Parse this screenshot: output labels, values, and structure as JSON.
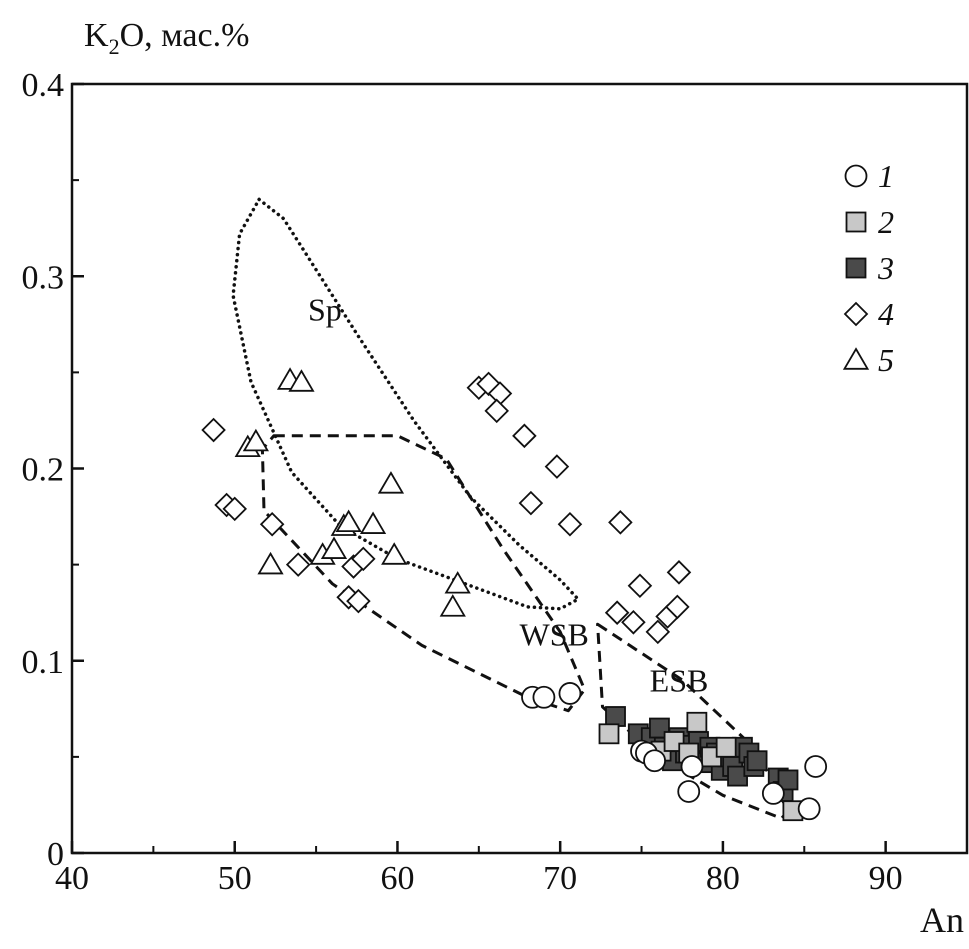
{
  "chart_data": {
    "type": "scatter",
    "title": "",
    "xlabel": "An",
    "ylabel_main": "K",
    "ylabel_sub": "2",
    "ylabel_rest": "O, мас.%",
    "xlim": [
      40,
      95
    ],
    "ylim": [
      0,
      0.4
    ],
    "x_ticks": [
      40,
      50,
      60,
      70,
      80,
      90
    ],
    "y_ticks": [
      0,
      0.1,
      0.2,
      0.3,
      0.4
    ],
    "y_tick_labels": [
      "0",
      "0.1",
      "0.2",
      "0.3",
      "0.4"
    ],
    "grid": false,
    "legend_position": "top-right",
    "series": [
      {
        "name": "1",
        "marker": "circle",
        "fill": "#ffffff",
        "points": [
          [
            68.3,
            0.081
          ],
          [
            69.0,
            0.081
          ],
          [
            70.6,
            0.083
          ],
          [
            75.0,
            0.053
          ],
          [
            75.3,
            0.052
          ],
          [
            75.8,
            0.048
          ],
          [
            77.9,
            0.032
          ],
          [
            78.1,
            0.045
          ],
          [
            83.1,
            0.031
          ],
          [
            85.3,
            0.023
          ],
          [
            85.7,
            0.045
          ]
        ]
      },
      {
        "name": "2",
        "marker": "square",
        "fill": "#c8c8c8",
        "points": [
          [
            73.0,
            0.062
          ],
          [
            76.2,
            0.053
          ],
          [
            77.0,
            0.058
          ],
          [
            77.9,
            0.052
          ],
          [
            78.4,
            0.068
          ],
          [
            79.3,
            0.05
          ],
          [
            80.2,
            0.055
          ],
          [
            84.3,
            0.022
          ]
        ]
      },
      {
        "name": "3",
        "marker": "square",
        "fill": "#4a4a4a",
        "points": [
          [
            73.4,
            0.071
          ],
          [
            74.8,
            0.062
          ],
          [
            75.6,
            0.06
          ],
          [
            76.1,
            0.065
          ],
          [
            76.4,
            0.055
          ],
          [
            76.9,
            0.048
          ],
          [
            77.3,
            0.06
          ],
          [
            77.7,
            0.052
          ],
          [
            78.0,
            0.056
          ],
          [
            78.5,
            0.058
          ],
          [
            78.9,
            0.047
          ],
          [
            79.2,
            0.055
          ],
          [
            79.6,
            0.052
          ],
          [
            79.9,
            0.043
          ],
          [
            80.3,
            0.05
          ],
          [
            80.6,
            0.045
          ],
          [
            80.9,
            0.04
          ],
          [
            81.2,
            0.055
          ],
          [
            81.6,
            0.052
          ],
          [
            81.9,
            0.045
          ],
          [
            82.1,
            0.048
          ],
          [
            83.4,
            0.039
          ],
          [
            83.7,
            0.032
          ],
          [
            84.0,
            0.038
          ]
        ]
      },
      {
        "name": "4",
        "marker": "diamond",
        "fill": "#ffffff",
        "points": [
          [
            48.7,
            0.22
          ],
          [
            49.5,
            0.181
          ],
          [
            50.0,
            0.179
          ],
          [
            52.3,
            0.171
          ],
          [
            53.9,
            0.15
          ],
          [
            57.0,
            0.133
          ],
          [
            57.6,
            0.131
          ],
          [
            57.3,
            0.149
          ],
          [
            57.9,
            0.153
          ],
          [
            65.0,
            0.242
          ],
          [
            65.6,
            0.244
          ],
          [
            66.3,
            0.239
          ],
          [
            66.1,
            0.23
          ],
          [
            67.8,
            0.217
          ],
          [
            68.2,
            0.182
          ],
          [
            69.8,
            0.201
          ],
          [
            70.6,
            0.171
          ],
          [
            73.5,
            0.125
          ],
          [
            73.7,
            0.172
          ],
          [
            74.5,
            0.12
          ],
          [
            74.9,
            0.139
          ],
          [
            76.0,
            0.115
          ],
          [
            76.6,
            0.123
          ],
          [
            77.2,
            0.128
          ],
          [
            77.3,
            0.146
          ]
        ]
      },
      {
        "name": "5",
        "marker": "triangle",
        "fill": "#ffffff",
        "points": [
          [
            50.8,
            0.211
          ],
          [
            51.3,
            0.214
          ],
          [
            52.2,
            0.15
          ],
          [
            53.4,
            0.246
          ],
          [
            54.1,
            0.245
          ],
          [
            55.4,
            0.155
          ],
          [
            56.1,
            0.158
          ],
          [
            56.7,
            0.17
          ],
          [
            57.0,
            0.172
          ],
          [
            58.5,
            0.171
          ],
          [
            59.6,
            0.192
          ],
          [
            59.8,
            0.155
          ],
          [
            63.4,
            0.128
          ],
          [
            63.7,
            0.14
          ]
        ]
      }
    ],
    "fields": [
      {
        "name": "Sp",
        "style": "dotted",
        "label_pos": [
          54.5,
          0.277
        ],
        "path": [
          [
            51.5,
            0.34
          ],
          [
            53.0,
            0.33
          ],
          [
            54.5,
            0.31
          ],
          [
            57.5,
            0.27
          ],
          [
            61.0,
            0.225
          ],
          [
            64.5,
            0.185
          ],
          [
            67.5,
            0.16
          ],
          [
            70.0,
            0.142
          ],
          [
            71.1,
            0.132
          ],
          [
            70.0,
            0.127
          ],
          [
            68.0,
            0.128
          ],
          [
            64.5,
            0.139
          ],
          [
            60.0,
            0.153
          ],
          [
            56.5,
            0.17
          ],
          [
            53.5,
            0.198
          ],
          [
            51.0,
            0.245
          ],
          [
            49.9,
            0.29
          ],
          [
            50.3,
            0.322
          ],
          [
            51.5,
            0.34
          ]
        ]
      },
      {
        "name": "WSB",
        "style": "dashed",
        "label_pos": [
          67.5,
          0.108
        ],
        "path": [
          [
            52.4,
            0.217
          ],
          [
            60.0,
            0.217
          ],
          [
            63.0,
            0.205
          ],
          [
            66.5,
            0.158
          ],
          [
            70.0,
            0.115
          ],
          [
            71.5,
            0.085
          ],
          [
            70.5,
            0.074
          ],
          [
            68.0,
            0.081
          ],
          [
            61.5,
            0.108
          ],
          [
            56.0,
            0.14
          ],
          [
            51.8,
            0.178
          ],
          [
            51.7,
            0.21
          ],
          [
            52.4,
            0.217
          ]
        ]
      },
      {
        "name": "ESB",
        "style": "dashed",
        "label_pos": [
          75.5,
          0.084
        ],
        "path": [
          [
            72.3,
            0.119
          ],
          [
            77.5,
            0.09
          ],
          [
            82.0,
            0.054
          ],
          [
            84.0,
            0.022
          ],
          [
            83.6,
            0.018
          ],
          [
            80.0,
            0.03
          ],
          [
            76.0,
            0.05
          ],
          [
            72.6,
            0.076
          ],
          [
            72.3,
            0.119
          ]
        ]
      }
    ]
  }
}
